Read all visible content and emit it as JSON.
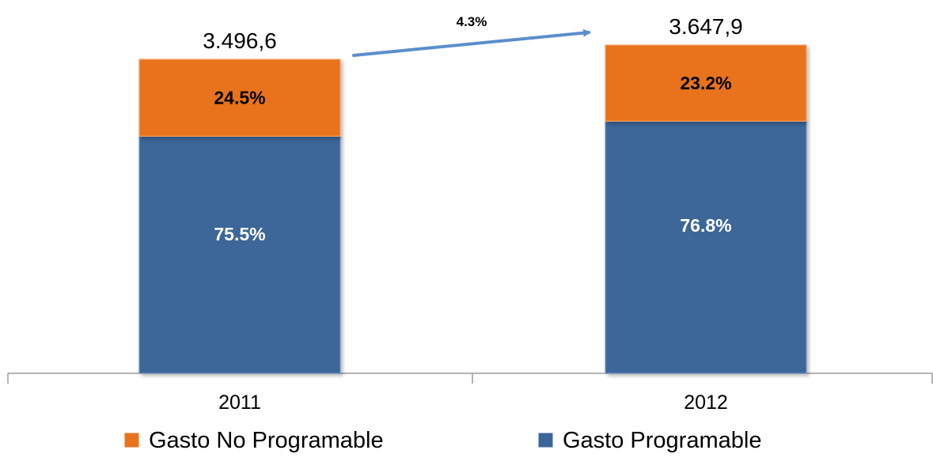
{
  "chart_data": {
    "type": "bar",
    "stacked": true,
    "percent_stacked": true,
    "categories": [
      "2011",
      "2012"
    ],
    "totals": [
      "3.496,6",
      "3.647,9"
    ],
    "series": [
      {
        "name": "Gasto Programable",
        "values": [
          75.5,
          76.8
        ],
        "labels": [
          "75.5%",
          "76.8%"
        ],
        "color": "#3C6699"
      },
      {
        "name": "Gasto No Programable",
        "values": [
          24.5,
          23.2
        ],
        "labels": [
          "24.5%",
          "23.2%"
        ],
        "color": "#E8731C"
      }
    ],
    "legend_order": [
      "Gasto No Programable",
      "Gasto Programable"
    ],
    "legend_position": "bottom",
    "growth_annotation": {
      "label": "4.3%",
      "color": "#5B8FCB"
    },
    "grid": false,
    "title": "",
    "xlabel": "",
    "ylabel": ""
  }
}
